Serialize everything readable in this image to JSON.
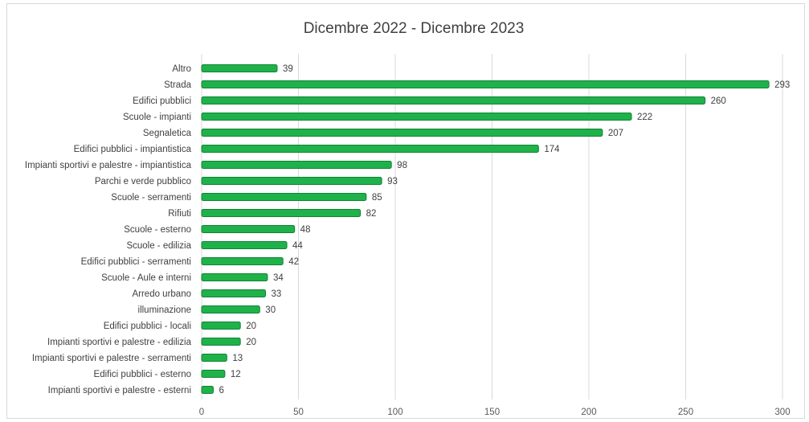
{
  "chart_data": {
    "type": "bar",
    "orientation": "horizontal",
    "title": "Dicembre 2022 - Dicembre 2023",
    "categories": [
      "Altro",
      "Strada",
      "Edifici pubblici",
      "Scuole - impianti",
      "Segnaletica",
      "Edifici pubblici - impiantistica",
      "Impianti sportivi e palestre - impiantistica",
      "Parchi e verde pubblico",
      "Scuole - serramenti",
      "Rifiuti",
      "Scuole - esterno",
      "Scuole - edilizia",
      "Edifici pubblici - serramenti",
      "Scuole - Aule e interni",
      "Arredo urbano",
      "illuminazione",
      "Edifici pubblici - locali",
      "Impianti sportivi e palestre - edilizia",
      "Impianti sportivi e palestre - serramenti",
      "Edifici pubblici - esterno",
      "Impianti sportivi e palestre - esterni"
    ],
    "values": [
      39,
      293,
      260,
      222,
      207,
      174,
      98,
      93,
      85,
      82,
      48,
      44,
      42,
      34,
      33,
      30,
      20,
      20,
      13,
      12,
      6
    ],
    "xlim": [
      0,
      300
    ],
    "xticks": [
      "0",
      "50",
      "100",
      "150",
      "200",
      "250",
      "300"
    ],
    "grid": true,
    "bar_color": "#1fb24a",
    "bar_edge_color": "#128234"
  }
}
